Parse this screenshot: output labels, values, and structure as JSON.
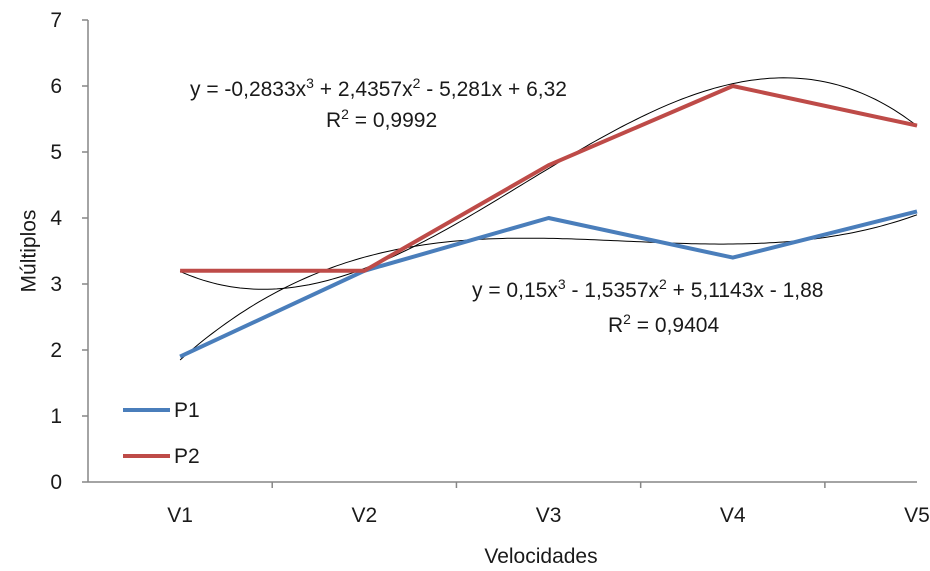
{
  "chart_data": {
    "type": "line",
    "title": "",
    "xlabel": "Velocidades",
    "ylabel": "Múltiplos",
    "categories": [
      "V1",
      "V2",
      "V3",
      "V4",
      "V5"
    ],
    "ylim": [
      0,
      7
    ],
    "yticks": [
      "0",
      "1",
      "2",
      "3",
      "4",
      "5",
      "6",
      "7"
    ],
    "grid": false,
    "legend_position": "bottom-left",
    "series": [
      {
        "name": "P1",
        "color": "#4a7ebb",
        "values": [
          1.9,
          3.2,
          4.0,
          3.4,
          4.1
        ]
      },
      {
        "name": "P2",
        "color": "#be4b48",
        "values": [
          3.2,
          3.2,
          4.8,
          6.0,
          5.4
        ]
      }
    ],
    "trendlines": [
      {
        "series": "P2",
        "type": "polynomial",
        "order": 3,
        "coefficients": [
          -0.2833,
          2.4357,
          -5.281,
          6.32
        ],
        "color": "#000000"
      },
      {
        "series": "P1",
        "type": "polynomial",
        "order": 3,
        "coefficients": [
          0.15,
          -1.5357,
          5.1143,
          -1.88
        ],
        "color": "#000000"
      }
    ],
    "annotations": {
      "p2_eq": {
        "pre": "y = -0,2833x",
        "a": "3",
        "b": " + 2,4357x",
        "c": "2",
        "d": " - 5,281x + 6,32"
      },
      "p2_r2": {
        "pre": "R",
        "sup": "2",
        "post": " = 0,9992"
      },
      "p1_eq": {
        "pre": "y = 0,15x",
        "a": "3",
        "b": " - 1,5357x",
        "c": "2",
        "d": " + 5,1143x - 1,88"
      },
      "p1_r2": {
        "pre": "R",
        "sup": "2",
        "post": " = 0,9404"
      }
    }
  }
}
